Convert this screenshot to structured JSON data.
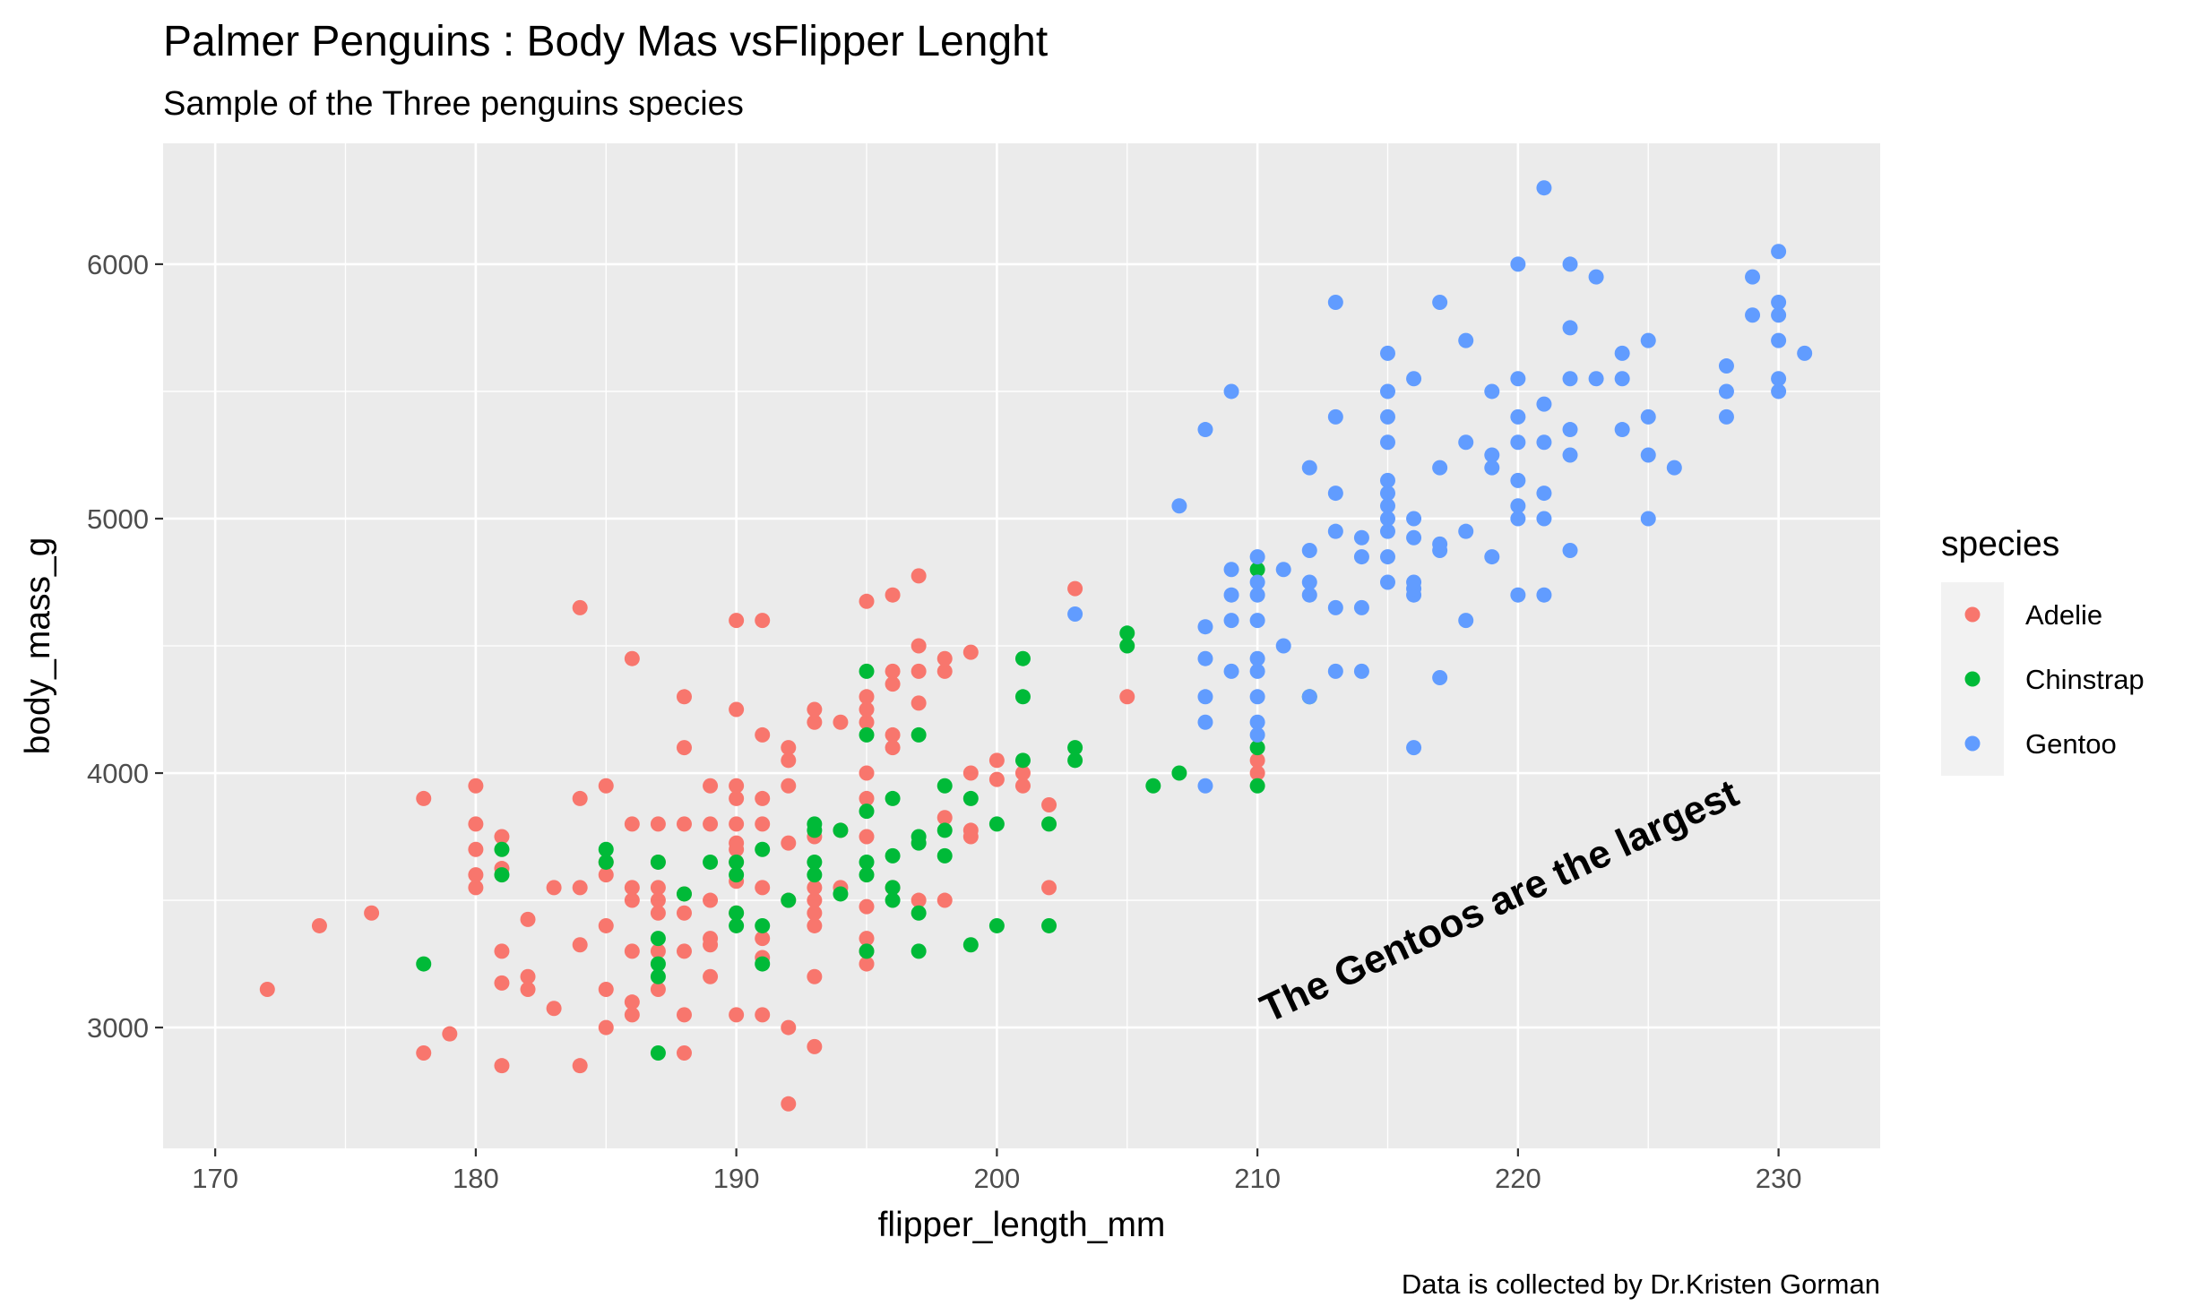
{
  "chart_data": {
    "type": "scatter",
    "title": "Palmer Penguins : Body Mas vsFlipper Lenght",
    "subtitle": "Sample of the Three penguins species",
    "caption": "Data is collected by Dr.Kristen Gorman",
    "xlabel": "flipper_length_mm",
    "ylabel": "body_mass_g",
    "xlim": [
      168.0,
      233.9
    ],
    "ylim": [
      2525,
      6475
    ],
    "x_ticks": [
      170,
      180,
      190,
      200,
      210,
      220,
      230
    ],
    "y_ticks": [
      3000,
      4000,
      5000,
      6000
    ],
    "grid": true,
    "legend": {
      "title": "species",
      "position": "right"
    },
    "annotation": {
      "text": "The Gentoos are the largest",
      "x": 219.5,
      "y": 3450,
      "angle": -25
    },
    "series": [
      {
        "name": "Adelie",
        "color": "#F8766D",
        "points": [
          [
            172,
            3150
          ],
          [
            174,
            3400
          ],
          [
            176,
            3450
          ],
          [
            178,
            2900
          ],
          [
            178,
            3900
          ],
          [
            179,
            2975
          ],
          [
            180,
            3550
          ],
          [
            180,
            3600
          ],
          [
            180,
            3700
          ],
          [
            180,
            3800
          ],
          [
            180,
            3950
          ],
          [
            181,
            2850
          ],
          [
            181,
            3175
          ],
          [
            181,
            3300
          ],
          [
            181,
            3625
          ],
          [
            181,
            3750
          ],
          [
            182,
            3150
          ],
          [
            182,
            3200
          ],
          [
            182,
            3425
          ],
          [
            183,
            3075
          ],
          [
            183,
            3550
          ],
          [
            184,
            2850
          ],
          [
            184,
            3325
          ],
          [
            184,
            3550
          ],
          [
            184,
            3900
          ],
          [
            184,
            4650
          ],
          [
            185,
            3000
          ],
          [
            185,
            3150
          ],
          [
            185,
            3400
          ],
          [
            185,
            3600
          ],
          [
            185,
            3650
          ],
          [
            185,
            3950
          ],
          [
            186,
            3050
          ],
          [
            186,
            3100
          ],
          [
            186,
            3300
          ],
          [
            186,
            3500
          ],
          [
            186,
            3550
          ],
          [
            186,
            3800
          ],
          [
            186,
            4450
          ],
          [
            187,
            3150
          ],
          [
            187,
            3300
          ],
          [
            187,
            3450
          ],
          [
            187,
            3500
          ],
          [
            187,
            3550
          ],
          [
            187,
            3650
          ],
          [
            187,
            3800
          ],
          [
            188,
            2900
          ],
          [
            188,
            3050
          ],
          [
            188,
            3300
          ],
          [
            188,
            3450
          ],
          [
            188,
            3525
          ],
          [
            188,
            3800
          ],
          [
            188,
            4100
          ],
          [
            188,
            4300
          ],
          [
            189,
            3200
          ],
          [
            189,
            3325
          ],
          [
            189,
            3350
          ],
          [
            189,
            3500
          ],
          [
            189,
            3800
          ],
          [
            189,
            3950
          ],
          [
            190,
            3050
          ],
          [
            190,
            3450
          ],
          [
            190,
            3575
          ],
          [
            190,
            3650
          ],
          [
            190,
            3700
          ],
          [
            190,
            3725
          ],
          [
            190,
            3800
          ],
          [
            190,
            3900
          ],
          [
            190,
            3950
          ],
          [
            190,
            4250
          ],
          [
            190,
            4600
          ],
          [
            191,
            3050
          ],
          [
            191,
            3275
          ],
          [
            191,
            3350
          ],
          [
            191,
            3550
          ],
          [
            191,
            3800
          ],
          [
            191,
            3900
          ],
          [
            191,
            4150
          ],
          [
            191,
            4600
          ],
          [
            192,
            2700
          ],
          [
            192,
            3000
          ],
          [
            192,
            3500
          ],
          [
            192,
            3725
          ],
          [
            192,
            3950
          ],
          [
            192,
            4050
          ],
          [
            192,
            4100
          ],
          [
            193,
            2925
          ],
          [
            193,
            3200
          ],
          [
            193,
            3400
          ],
          [
            193,
            3450
          ],
          [
            193,
            3500
          ],
          [
            193,
            3550
          ],
          [
            193,
            3750
          ],
          [
            193,
            4200
          ],
          [
            193,
            4250
          ],
          [
            194,
            3550
          ],
          [
            194,
            3775
          ],
          [
            194,
            4200
          ],
          [
            195,
            3250
          ],
          [
            195,
            3300
          ],
          [
            195,
            3350
          ],
          [
            195,
            3475
          ],
          [
            195,
            3750
          ],
          [
            195,
            3900
          ],
          [
            195,
            4000
          ],
          [
            195,
            4200
          ],
          [
            195,
            4250
          ],
          [
            195,
            4300
          ],
          [
            195,
            4675
          ],
          [
            196,
            3550
          ],
          [
            196,
            4100
          ],
          [
            196,
            4150
          ],
          [
            196,
            4350
          ],
          [
            196,
            4400
          ],
          [
            196,
            4700
          ],
          [
            197,
            3500
          ],
          [
            197,
            4275
          ],
          [
            197,
            4400
          ],
          [
            197,
            4500
          ],
          [
            197,
            4775
          ],
          [
            198,
            3500
          ],
          [
            198,
            3825
          ],
          [
            198,
            4400
          ],
          [
            198,
            4450
          ],
          [
            199,
            3750
          ],
          [
            199,
            3775
          ],
          [
            199,
            4000
          ],
          [
            199,
            4475
          ],
          [
            200,
            3975
          ],
          [
            200,
            4050
          ],
          [
            201,
            3950
          ],
          [
            201,
            4000
          ],
          [
            202,
            3550
          ],
          [
            202,
            3875
          ],
          [
            203,
            4725
          ],
          [
            205,
            4300
          ],
          [
            210,
            4000
          ],
          [
            210,
            4050
          ]
        ]
      },
      {
        "name": "Chinstrap",
        "color": "#00BA38",
        "points": [
          [
            178,
            3250
          ],
          [
            181,
            3600
          ],
          [
            181,
            3700
          ],
          [
            185,
            3650
          ],
          [
            185,
            3700
          ],
          [
            187,
            2900
          ],
          [
            187,
            3200
          ],
          [
            187,
            3250
          ],
          [
            187,
            3350
          ],
          [
            187,
            3650
          ],
          [
            188,
            3525
          ],
          [
            189,
            3650
          ],
          [
            190,
            3400
          ],
          [
            190,
            3450
          ],
          [
            190,
            3600
          ],
          [
            190,
            3650
          ],
          [
            191,
            3250
          ],
          [
            191,
            3400
          ],
          [
            191,
            3700
          ],
          [
            192,
            3500
          ],
          [
            193,
            3600
          ],
          [
            193,
            3650
          ],
          [
            193,
            3775
          ],
          [
            193,
            3800
          ],
          [
            194,
            3525
          ],
          [
            194,
            3775
          ],
          [
            195,
            3300
          ],
          [
            195,
            3600
          ],
          [
            195,
            3650
          ],
          [
            195,
            3850
          ],
          [
            195,
            4150
          ],
          [
            195,
            4400
          ],
          [
            196,
            3500
          ],
          [
            196,
            3550
          ],
          [
            196,
            3675
          ],
          [
            196,
            3900
          ],
          [
            197,
            3300
          ],
          [
            197,
            3450
          ],
          [
            197,
            3725
          ],
          [
            197,
            3750
          ],
          [
            197,
            4150
          ],
          [
            198,
            3675
          ],
          [
            198,
            3775
          ],
          [
            198,
            3950
          ],
          [
            199,
            3325
          ],
          [
            199,
            3900
          ],
          [
            200,
            3400
          ],
          [
            200,
            3800
          ],
          [
            201,
            4050
          ],
          [
            201,
            4300
          ],
          [
            201,
            4450
          ],
          [
            202,
            3400
          ],
          [
            202,
            3800
          ],
          [
            203,
            4050
          ],
          [
            203,
            4100
          ],
          [
            205,
            4500
          ],
          [
            205,
            4550
          ],
          [
            206,
            3950
          ],
          [
            207,
            4000
          ],
          [
            210,
            3950
          ],
          [
            210,
            4100
          ],
          [
            210,
            4800
          ],
          [
            212,
            4300
          ]
        ]
      },
      {
        "name": "Gentoo",
        "color": "#619CFF",
        "points": [
          [
            203,
            4625
          ],
          [
            207,
            5050
          ],
          [
            208,
            3950
          ],
          [
            208,
            4200
          ],
          [
            208,
            4300
          ],
          [
            208,
            4450
          ],
          [
            208,
            4575
          ],
          [
            208,
            5350
          ],
          [
            209,
            4400
          ],
          [
            209,
            4600
          ],
          [
            209,
            4700
          ],
          [
            209,
            4800
          ],
          [
            209,
            5500
          ],
          [
            210,
            4150
          ],
          [
            210,
            4200
          ],
          [
            210,
            4300
          ],
          [
            210,
            4400
          ],
          [
            210,
            4450
          ],
          [
            210,
            4600
          ],
          [
            210,
            4700
          ],
          [
            210,
            4750
          ],
          [
            210,
            4850
          ],
          [
            211,
            4500
          ],
          [
            211,
            4800
          ],
          [
            212,
            4300
          ],
          [
            212,
            4700
          ],
          [
            212,
            4750
          ],
          [
            212,
            4875
          ],
          [
            212,
            5200
          ],
          [
            213,
            4400
          ],
          [
            213,
            4650
          ],
          [
            213,
            4950
          ],
          [
            213,
            5100
          ],
          [
            213,
            5400
          ],
          [
            213,
            5850
          ],
          [
            214,
            4400
          ],
          [
            214,
            4650
          ],
          [
            214,
            4850
          ],
          [
            214,
            4925
          ],
          [
            215,
            4750
          ],
          [
            215,
            4850
          ],
          [
            215,
            4950
          ],
          [
            215,
            5000
          ],
          [
            215,
            5050
          ],
          [
            215,
            5100
          ],
          [
            215,
            5150
          ],
          [
            215,
            5300
          ],
          [
            215,
            5400
          ],
          [
            215,
            5500
          ],
          [
            215,
            5650
          ],
          [
            216,
            4100
          ],
          [
            216,
            4700
          ],
          [
            216,
            4725
          ],
          [
            216,
            4750
          ],
          [
            216,
            4925
          ],
          [
            216,
            5000
          ],
          [
            216,
            5550
          ],
          [
            217,
            4375
          ],
          [
            217,
            4875
          ],
          [
            217,
            4900
          ],
          [
            217,
            5200
          ],
          [
            217,
            5850
          ],
          [
            218,
            4600
          ],
          [
            218,
            4950
          ],
          [
            218,
            5300
          ],
          [
            218,
            5700
          ],
          [
            219,
            4850
          ],
          [
            219,
            5200
          ],
          [
            219,
            5250
          ],
          [
            219,
            5500
          ],
          [
            220,
            4700
          ],
          [
            220,
            5000
          ],
          [
            220,
            5050
          ],
          [
            220,
            5150
          ],
          [
            220,
            5300
          ],
          [
            220,
            5400
          ],
          [
            220,
            5550
          ],
          [
            220,
            6000
          ],
          [
            221,
            4700
          ],
          [
            221,
            5000
          ],
          [
            221,
            5100
          ],
          [
            221,
            5300
          ],
          [
            221,
            5450
          ],
          [
            221,
            6300
          ],
          [
            222,
            4875
          ],
          [
            222,
            5250
          ],
          [
            222,
            5350
          ],
          [
            222,
            5550
          ],
          [
            222,
            5750
          ],
          [
            222,
            6000
          ],
          [
            223,
            5550
          ],
          [
            223,
            5950
          ],
          [
            224,
            5350
          ],
          [
            224,
            5550
          ],
          [
            224,
            5650
          ],
          [
            225,
            5000
          ],
          [
            225,
            5250
          ],
          [
            225,
            5400
          ],
          [
            225,
            5700
          ],
          [
            226,
            5200
          ],
          [
            228,
            5400
          ],
          [
            228,
            5500
          ],
          [
            228,
            5600
          ],
          [
            229,
            5800
          ],
          [
            229,
            5950
          ],
          [
            230,
            5500
          ],
          [
            230,
            5550
          ],
          [
            230,
            5700
          ],
          [
            230,
            5800
          ],
          [
            230,
            5850
          ],
          [
            230,
            6050
          ],
          [
            231,
            5650
          ]
        ]
      }
    ]
  }
}
